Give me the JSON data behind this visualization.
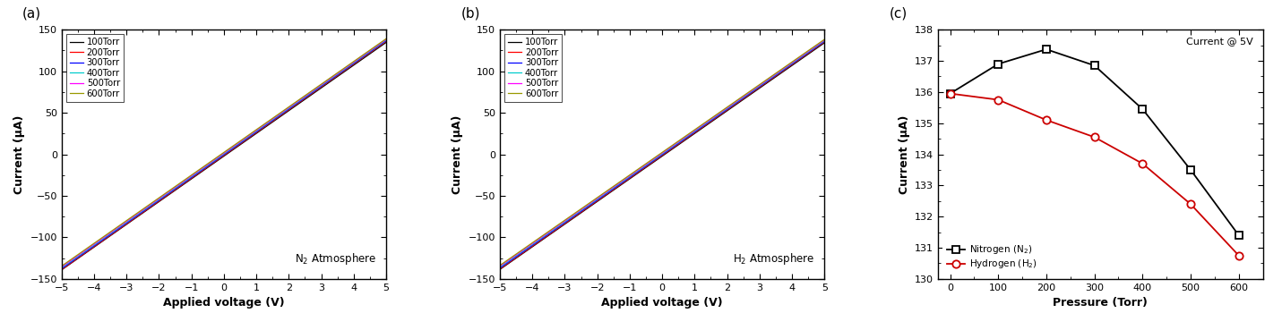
{
  "iv_colors": [
    "#000000",
    "#ff0000",
    "#0000ff",
    "#00cccc",
    "#ff00ff",
    "#999900"
  ],
  "iv_labels": [
    "100Torr",
    "200Torr",
    "300Torr",
    "400Torr",
    "500Torr",
    "600Torr"
  ],
  "N2_slopes": [
    27.4,
    27.5,
    27.48,
    27.45,
    27.42,
    27.38
  ],
  "H2_slopes": [
    27.3,
    27.35,
    27.32,
    27.28,
    27.25,
    27.22
  ],
  "panel_a_annotation": "N$_2$ Atmosphere",
  "panel_b_annotation": "H$_2$ Atmosphere",
  "xlabel_iv": "Applied voltage (V)",
  "ylabel_iv": "Current (μA)",
  "ylim_iv": [
    -150,
    150
  ],
  "xlim_iv": [
    -5,
    5
  ],
  "xticks_iv": [
    -5,
    -4,
    -3,
    -2,
    -1,
    0,
    1,
    2,
    3,
    4,
    5
  ],
  "yticks_iv": [
    -150,
    -100,
    -50,
    0,
    50,
    100,
    150
  ],
  "panel_c_xlabel": "Pressure (Torr)",
  "panel_c_ylabel": "Current (μA)",
  "panel_c_annotation": "Current @ 5V",
  "panel_c_xlim": [
    -25,
    650
  ],
  "panel_c_ylim": [
    130,
    138
  ],
  "panel_c_yticks": [
    130,
    131,
    132,
    133,
    134,
    135,
    136,
    137,
    138
  ],
  "panel_c_xticks": [
    0,
    100,
    200,
    300,
    400,
    500,
    600
  ],
  "N2_pressures": [
    0,
    100,
    200,
    300,
    400,
    500,
    600
  ],
  "N2_currents": [
    135.95,
    136.9,
    137.37,
    136.85,
    135.45,
    133.5,
    131.4
  ],
  "H2_pressures": [
    0,
    100,
    200,
    300,
    400,
    500,
    600
  ],
  "H2_currents": [
    135.95,
    135.75,
    135.1,
    134.55,
    133.7,
    132.4,
    130.75
  ],
  "N2_color": "#000000",
  "H2_color": "#cc0000",
  "N2_label": "Nitrogen (N$_2$)",
  "H2_label": "Hydrogen (H$_2$)"
}
